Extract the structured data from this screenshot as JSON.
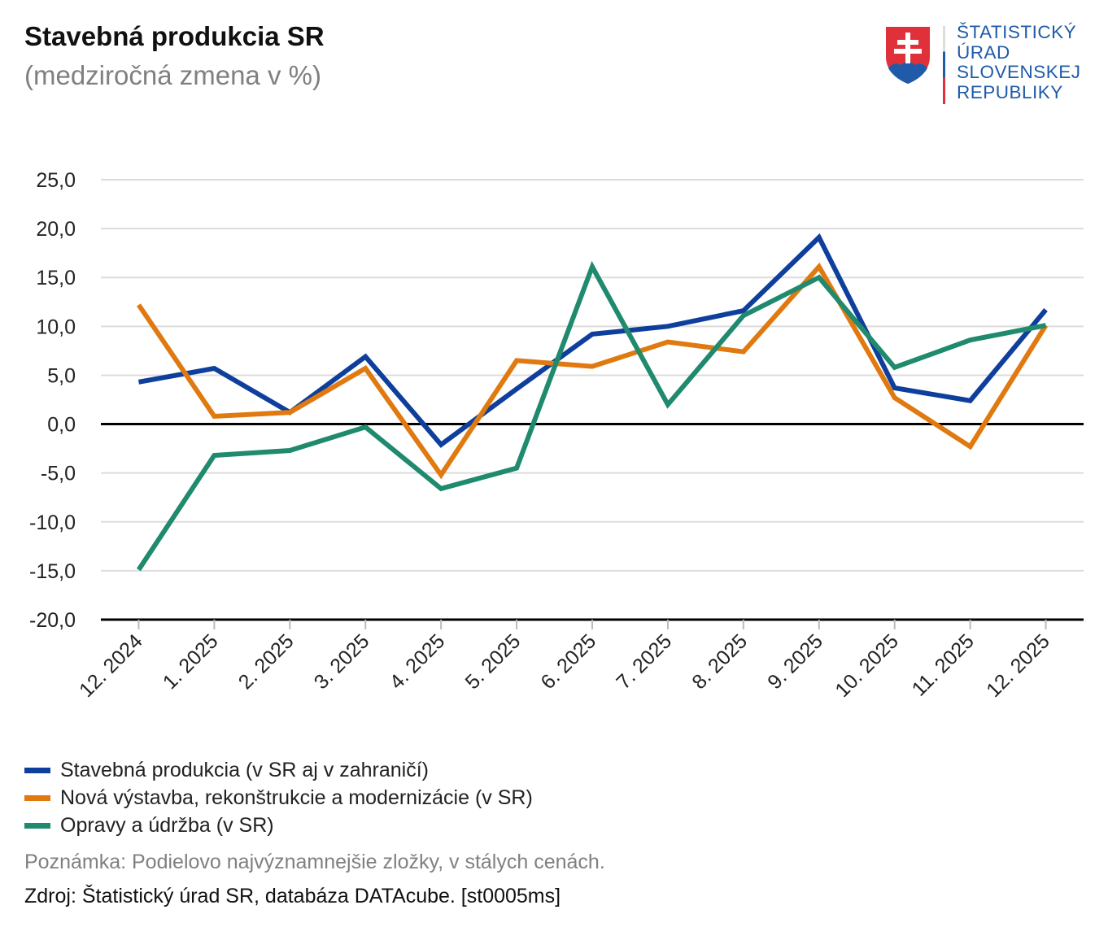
{
  "header": {
    "title": "Stavebná produkcia SR",
    "subtitle": "(medziročná zmena v %)"
  },
  "logo": {
    "lines": [
      "ŠTATISTICKÝ",
      "ÚRAD",
      "SLOVENSKEJ",
      "REPUBLIKY"
    ]
  },
  "chart_data": {
    "type": "line",
    "title": "Stavebná produkcia SR",
    "subtitle": "(medziročná zmena v %)",
    "categories": [
      "12. 2024",
      "1. 2025",
      "2. 2025",
      "3. 2025",
      "4. 2025",
      "5. 2025",
      "6. 2025",
      "7. 2025",
      "8. 2025",
      "9. 2025",
      "10. 2025",
      "11. 2025",
      "12. 2025"
    ],
    "ylim": [
      -20,
      25
    ],
    "yticks": [
      "25,0",
      "20,0",
      "15,0",
      "10,0",
      "5,0",
      "0,0",
      "-5,0",
      "-10,0",
      "-15,0",
      "-20,0"
    ],
    "ytick_values": [
      25,
      20,
      15,
      10,
      5,
      0,
      -5,
      -10,
      -15,
      -20
    ],
    "grid": true,
    "legend": "bottom",
    "series": [
      {
        "name": "Stavebná produkcia (v SR aj v zahraničí)",
        "color": "#0f3f9c",
        "values": [
          4.3,
          5.7,
          1.2,
          6.9,
          -2.1,
          3.6,
          9.2,
          10.0,
          11.6,
          19.1,
          3.7,
          2.4,
          11.7
        ]
      },
      {
        "name": "Nová výstavba, rekonštrukcie a modernizácie (v SR)",
        "color": "#e07a10",
        "values": [
          12.2,
          0.8,
          1.2,
          5.7,
          -5.2,
          6.5,
          5.9,
          8.4,
          7.4,
          16.1,
          2.7,
          -2.3,
          10.1
        ]
      },
      {
        "name": "Opravy a údržba (v SR)",
        "color": "#1f8a6e",
        "values": [
          -14.9,
          -3.2,
          -2.7,
          -0.3,
          -6.6,
          -4.5,
          16.1,
          2.0,
          11.1,
          15.0,
          5.8,
          8.6,
          10.1
        ]
      }
    ]
  },
  "footer": {
    "note": "Poznámka: Podielovo najvýznamnejšie zložky, v stálych cenách.",
    "source": "Zdroj: Štatistický úrad SR, databáza DATAcube. [st0005ms]"
  }
}
